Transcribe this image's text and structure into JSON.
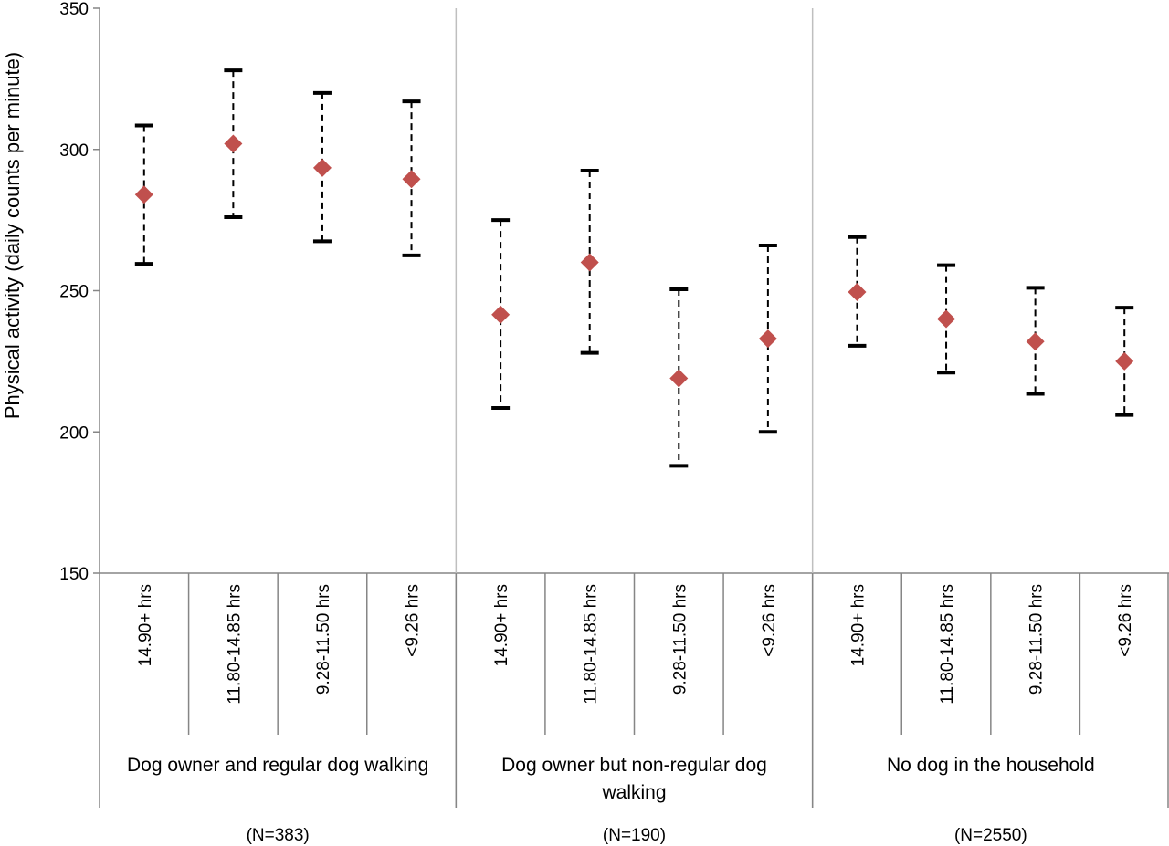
{
  "chart_data": {
    "type": "scatter",
    "ylabel": "Physical activity (daily counts per minute)",
    "ylim": [
      150,
      350
    ],
    "yticks": [
      150,
      200,
      250,
      300,
      350
    ],
    "grid": false,
    "marker_color": "#C0504D",
    "groups": [
      {
        "name": "Dog owner and regular dog walking",
        "name_lines": [
          "Dog owner and regular dog walking"
        ],
        "n": "(N=383)",
        "categories": [
          "14.90+ hrs",
          "11.80-14.85 hrs",
          "9.28-11.50 hrs",
          "<9.26 hrs"
        ],
        "points": [
          {
            "y": 284,
            "low": 259.5,
            "high": 308.5
          },
          {
            "y": 302,
            "low": 276,
            "high": 328
          },
          {
            "y": 293.5,
            "low": 267.5,
            "high": 320
          },
          {
            "y": 289.5,
            "low": 262.5,
            "high": 317
          }
        ]
      },
      {
        "name": "Dog owner but non-regular dog walking",
        "name_lines": [
          "Dog owner but non-regular dog",
          "walking"
        ],
        "n": "(N=190)",
        "categories": [
          "14.90+ hrs",
          "11.80-14.85 hrs",
          "9.28-11.50 hrs",
          "<9.26 hrs"
        ],
        "points": [
          {
            "y": 241.5,
            "low": 208.5,
            "high": 275
          },
          {
            "y": 260,
            "low": 228,
            "high": 292.5
          },
          {
            "y": 219,
            "low": 188,
            "high": 250.5
          },
          {
            "y": 233,
            "low": 200,
            "high": 266
          }
        ]
      },
      {
        "name": "No dog in the household",
        "name_lines": [
          "No dog in the household"
        ],
        "n": "(N=2550)",
        "categories": [
          "14.90+ hrs",
          "11.80-14.85 hrs",
          "9.28-11.50 hrs",
          "<9.26 hrs"
        ],
        "points": [
          {
            "y": 249.5,
            "low": 230.5,
            "high": 269
          },
          {
            "y": 240,
            "low": 221,
            "high": 259
          },
          {
            "y": 232,
            "low": 213.5,
            "high": 251
          },
          {
            "y": 225,
            "low": 206,
            "high": 244
          }
        ]
      }
    ]
  }
}
